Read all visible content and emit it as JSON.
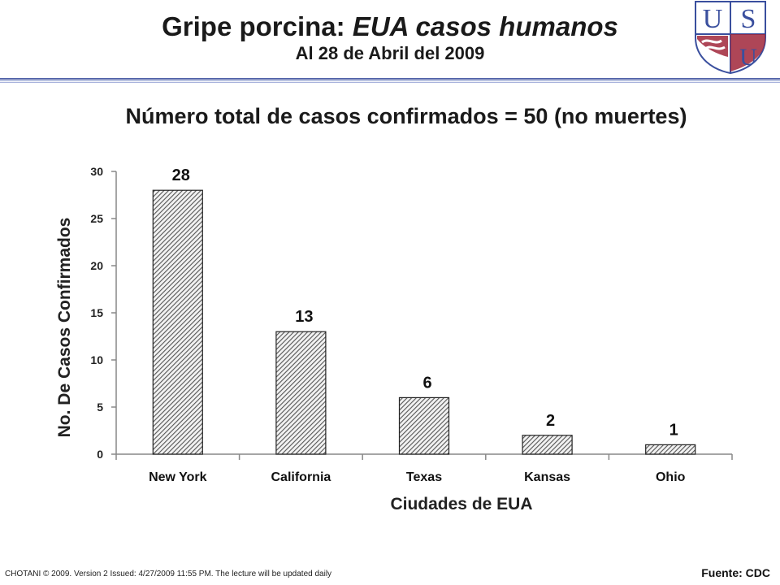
{
  "title": {
    "main_plain": "Gripe porcina: ",
    "main_italic": "EUA casos humanos",
    "sub": "Al 28 de Abril del 2009"
  },
  "headline": "Número total de casos confirmados = 50 (no muertes)",
  "logo": {
    "letters": [
      "U",
      "S",
      "U"
    ],
    "colors": {
      "blue": "#3a4f9e",
      "red": "#a0263a"
    }
  },
  "chart_data": {
    "type": "bar",
    "categories": [
      "New York",
      "California",
      "Texas",
      "Kansas",
      "Ohio"
    ],
    "values": [
      28,
      13,
      6,
      2,
      1
    ],
    "data_labels": [
      "28",
      "13",
      "6",
      "2",
      "1"
    ],
    "xlabel": "Ciudades de EUA",
    "ylabel": "No. De Casos Confirmados",
    "ylim": [
      0,
      30
    ],
    "yticks": [
      0,
      5,
      10,
      15,
      20,
      25,
      30
    ],
    "grid": false,
    "bar_fill": "hatched",
    "bar_color": "#555555"
  },
  "footer": {
    "left": "CHOTANI © 2009. Version 2 Issued: 4/27/2009 11:55 PM. The lecture will be updated daily",
    "right": "Fuente: CDC"
  }
}
